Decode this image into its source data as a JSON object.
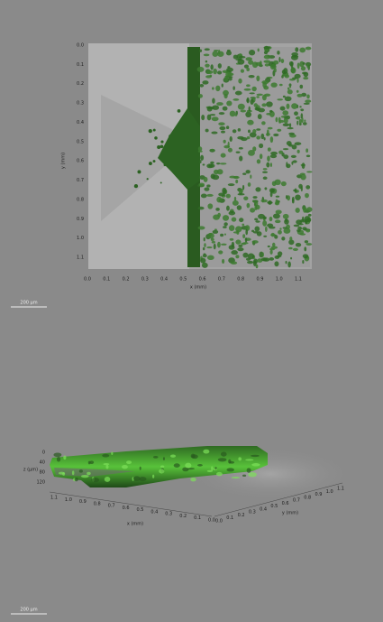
{
  "top_view": {
    "y_axis_label": "y (mm)",
    "y_ticks": [
      "0.0",
      "0.1",
      "0.2",
      "0.3",
      "0.4",
      "0.5",
      "0.6",
      "0.7",
      "0.8",
      "0.9",
      "1.0",
      "1.1"
    ],
    "x_axis_label": "x (mm)",
    "x_ticks": [
      "0.0",
      "0.1",
      "0.2",
      "0.3",
      "0.4",
      "0.5",
      "0.6",
      "0.7",
      "0.8",
      "0.9",
      "1.0",
      "1.1"
    ],
    "scale_bar": "200 µm"
  },
  "side_view": {
    "z_axis_label": "z (µm)",
    "z_ticks": [
      "0",
      "40",
      "80",
      "120"
    ],
    "x_axis_label": "x (mm)",
    "x_ticks": [
      "1.1",
      "1.0",
      "0.9",
      "0.8",
      "0.7",
      "0.6",
      "0.5",
      "0.4",
      "0.3",
      "0.2",
      "0.1",
      "0.0"
    ],
    "y_axis_label": "y (mm)",
    "y_ticks": [
      "0.0",
      "0.1",
      "0.2",
      "0.3",
      "0.4",
      "0.5",
      "0.6",
      "0.7",
      "0.8",
      "0.9",
      "1.0",
      "1.1"
    ],
    "scale_bar": "200 µm"
  }
}
